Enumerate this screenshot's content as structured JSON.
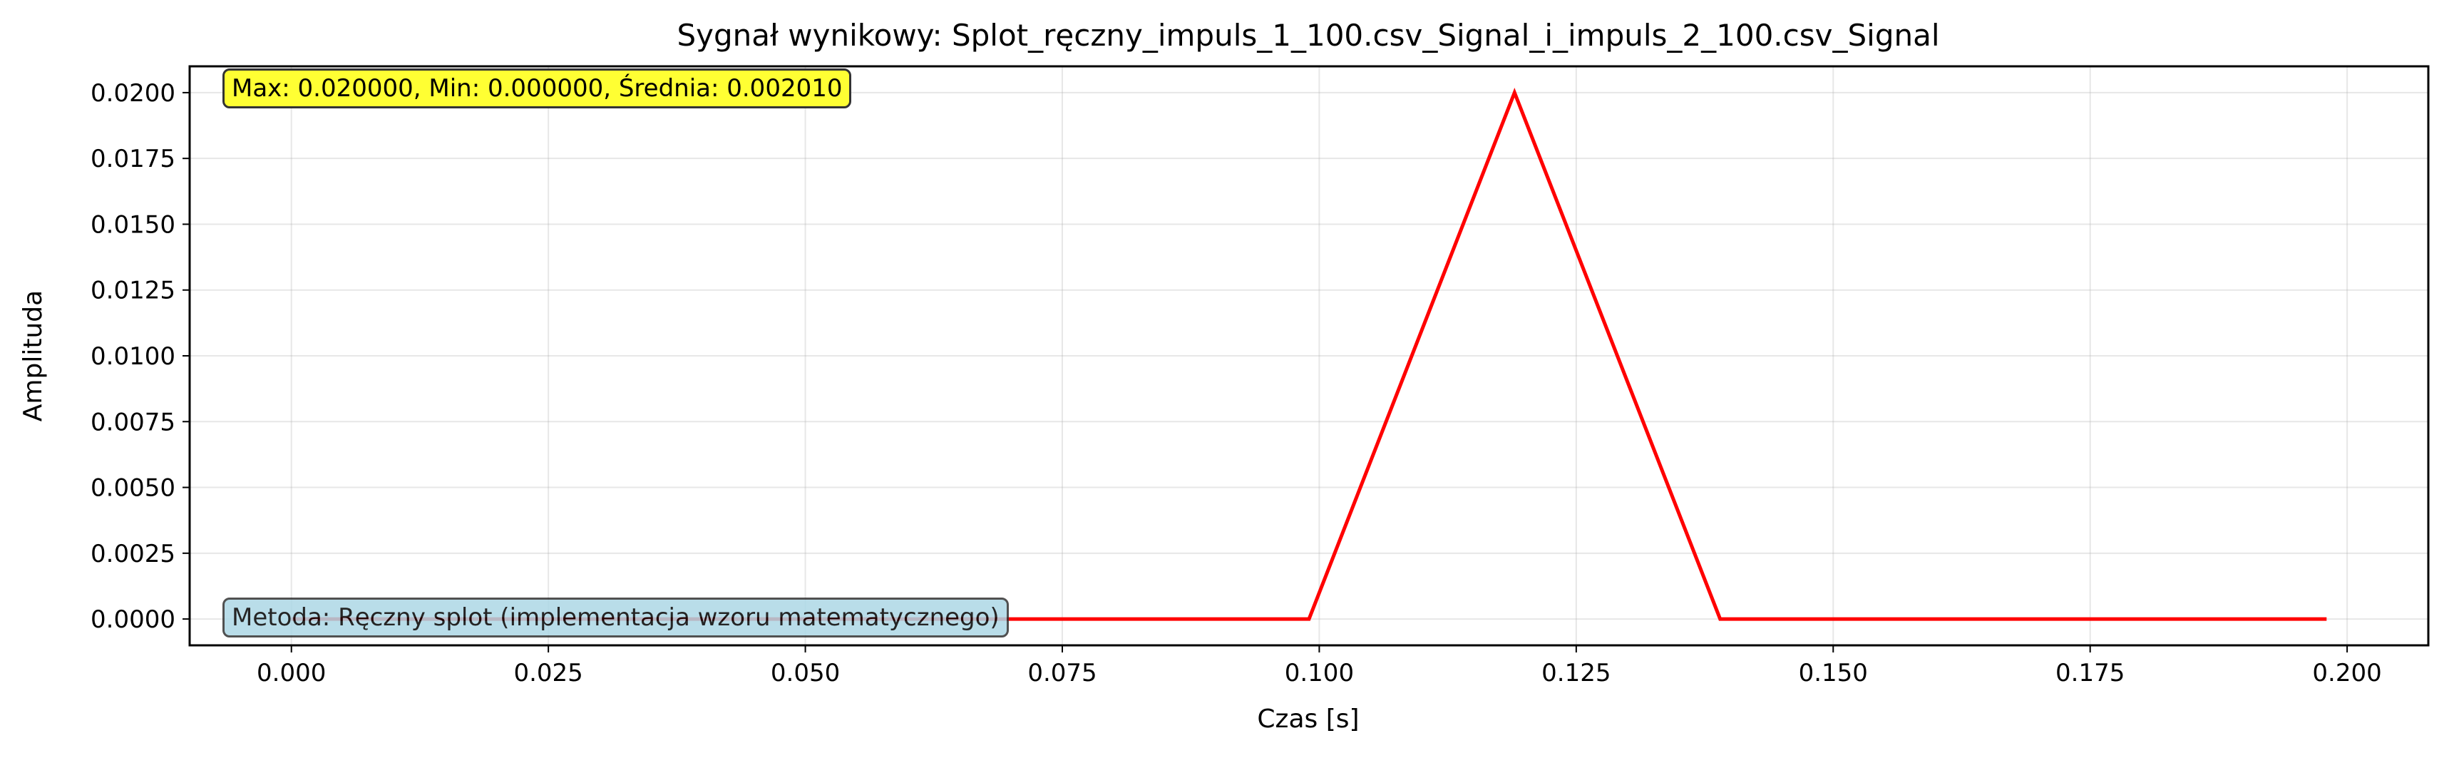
{
  "chart_data": {
    "type": "line",
    "title": "Sygnał wynikowy: Splot_ręczny_impuls_1_100.csv_Signal_i_impuls_2_100.csv_Signal",
    "xlabel": "Czas [s]",
    "ylabel": "Amplituda",
    "xlim": [
      -0.0099,
      0.2079
    ],
    "ylim": [
      -0.001,
      0.021
    ],
    "x_ticks": [
      0.0,
      0.025,
      0.05,
      0.075,
      0.1,
      0.125,
      0.15,
      0.175,
      0.2
    ],
    "x_tick_labels": [
      "0.000",
      "0.025",
      "0.050",
      "0.075",
      "0.100",
      "0.125",
      "0.150",
      "0.175",
      "0.200"
    ],
    "y_ticks": [
      0.0,
      0.0025,
      0.005,
      0.0075,
      0.01,
      0.0125,
      0.015,
      0.0175,
      0.02
    ],
    "y_tick_labels": [
      "0.0000",
      "0.0025",
      "0.0050",
      "0.0075",
      "0.0100",
      "0.0125",
      "0.0150",
      "0.0175",
      "0.0200"
    ],
    "grid": true,
    "series": [
      {
        "color": "#ff0000",
        "x": [
          0.0,
          0.099,
          0.119,
          0.139,
          0.198
        ],
        "y": [
          0.0,
          0.0,
          0.02,
          0.0,
          0.0
        ]
      }
    ],
    "annotations": {
      "stats": "Max: 0.020000, Min: 0.000000, Średnia: 0.002010",
      "method": "Metoda: Ręczny splot (implementacja wzoru matematycznego)"
    },
    "annotation_colors": {
      "stats": "#ffff33",
      "method": "#add8e6"
    }
  }
}
